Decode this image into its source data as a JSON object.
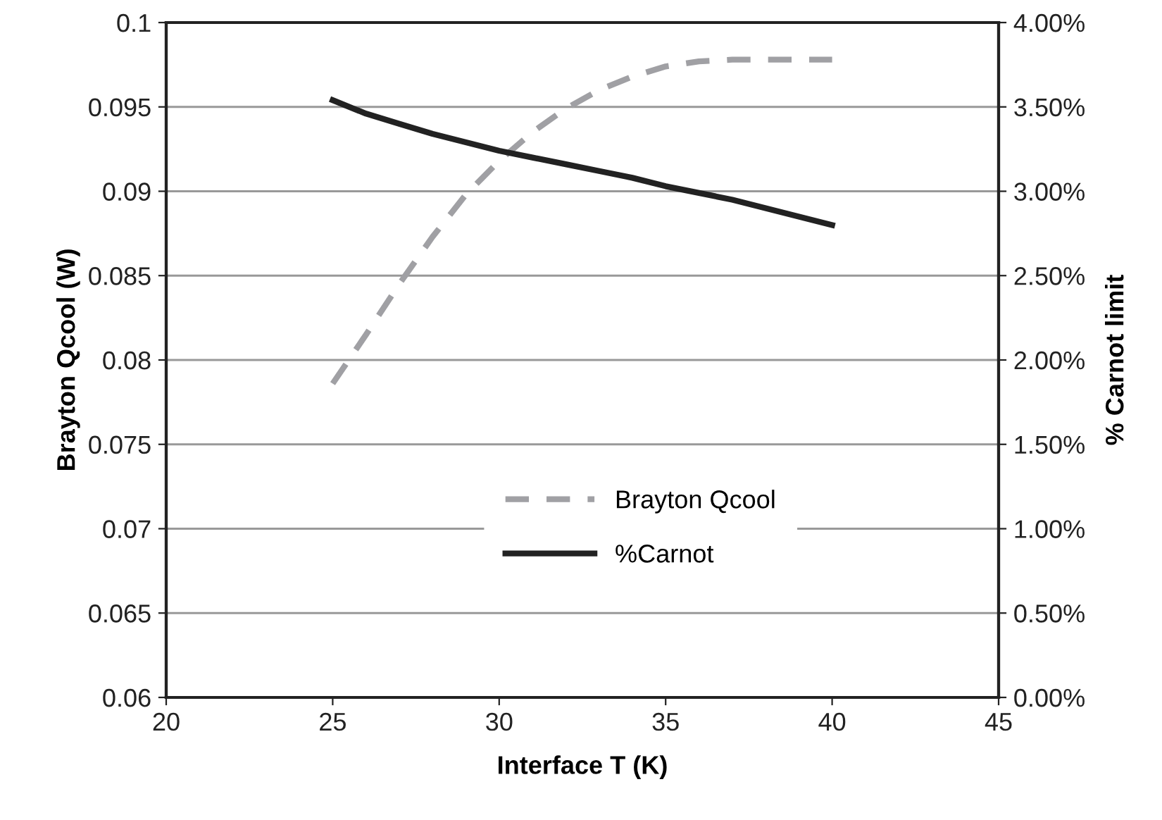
{
  "chart_data": {
    "type": "line",
    "xlabel": "Interface T (K)",
    "ylabel": "Brayton Qcool (W)",
    "y2label": "% Carnot limit",
    "x": [
      25,
      26,
      27,
      28,
      29,
      30,
      31,
      32,
      33,
      34,
      35,
      36,
      37,
      38,
      39,
      40
    ],
    "series": [
      {
        "name": "Brayton Qcool",
        "color": "#a0a0a4",
        "line_style": "dashed",
        "values": [
          0.0786,
          0.0815,
          0.0845,
          0.0873,
          0.0898,
          0.0918,
          0.0935,
          0.0949,
          0.096,
          0.0968,
          0.0974,
          0.0977,
          0.0978,
          0.0978,
          0.0978,
          0.0978
        ]
      },
      {
        "name": "%Carnot",
        "color": "#222222",
        "line_style": "solid",
        "axis": "y2",
        "values": [
          3.54,
          3.46,
          3.4,
          3.34,
          3.29,
          3.24,
          3.2,
          3.16,
          3.12,
          3.08,
          3.03,
          2.99,
          2.95,
          2.9,
          2.85,
          2.8
        ]
      }
    ],
    "xlim": [
      20,
      45
    ],
    "xticks": [
      20,
      25,
      30,
      35,
      40,
      45
    ],
    "ylim": [
      0.06,
      0.1
    ],
    "yticks": [
      0.06,
      0.065,
      0.07,
      0.075,
      0.08,
      0.085,
      0.09,
      0.095,
      0.1
    ],
    "y2lim": [
      0,
      4
    ],
    "y2ticks": [
      {
        "value": 0,
        "label": "0.00%"
      },
      {
        "value": 0.5,
        "label": "0.50%"
      },
      {
        "value": 1,
        "label": "1.00%"
      },
      {
        "value": 1.5,
        "label": "1.50%"
      },
      {
        "value": 2,
        "label": "2.00%"
      },
      {
        "value": 2.5,
        "label": "2.50%"
      },
      {
        "value": 3,
        "label": "3.00%"
      },
      {
        "value": 3.5,
        "label": "3.50%"
      },
      {
        "value": 4,
        "label": "4.00%"
      }
    ],
    "grid": "y",
    "legend": "bottom",
    "marker": "none"
  }
}
